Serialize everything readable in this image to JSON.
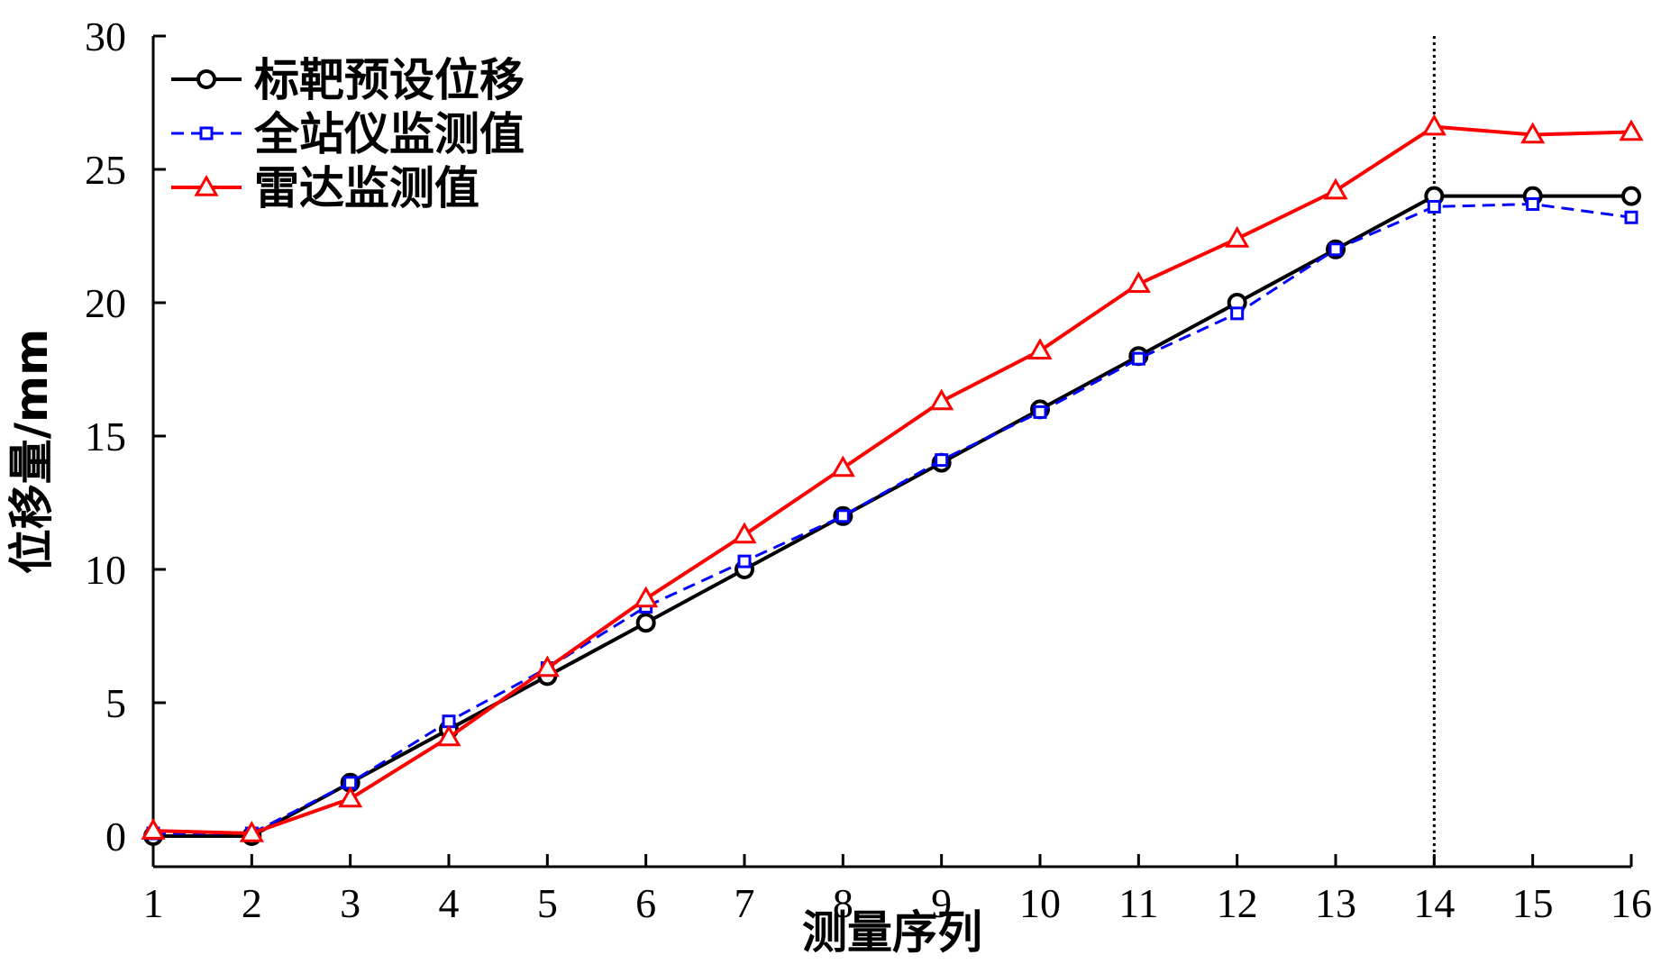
{
  "chart_data": {
    "type": "line",
    "title": "",
    "xlabel": "测量序列",
    "ylabel": "位移量/mm",
    "x": [
      1,
      2,
      3,
      4,
      5,
      6,
      7,
      8,
      9,
      10,
      11,
      12,
      13,
      14,
      15,
      16
    ],
    "xlim": [
      1,
      16
    ],
    "ylim": [
      0,
      30
    ],
    "yticks": [
      0,
      5,
      10,
      15,
      20,
      25,
      30
    ],
    "xticks": [
      1,
      2,
      3,
      4,
      5,
      6,
      7,
      8,
      9,
      10,
      11,
      12,
      13,
      14,
      15,
      16
    ],
    "grid": false,
    "legend_position": "top-left",
    "reference_line": {
      "x": 14,
      "style": "dotted"
    },
    "series": [
      {
        "name": "标靶预设位移",
        "color": "#000000",
        "marker": "circle",
        "line_style": "solid",
        "values": [
          0,
          0,
          2,
          4,
          6,
          8,
          10,
          12,
          14,
          16,
          18,
          20,
          22,
          24,
          24,
          24
        ]
      },
      {
        "name": "全站仪监测值",
        "color": "#0000ff",
        "marker": "square",
        "line_style": "dashed",
        "values": [
          0.1,
          0.1,
          2.0,
          4.3,
          6.3,
          8.6,
          10.3,
          12.0,
          14.1,
          15.9,
          17.9,
          19.6,
          22.0,
          23.6,
          23.7,
          23.2
        ]
      },
      {
        "name": "雷达监测值",
        "color": "#ff0000",
        "marker": "triangle",
        "line_style": "solid",
        "values": [
          0.2,
          0.1,
          1.4,
          3.7,
          6.3,
          8.9,
          11.3,
          13.8,
          16.3,
          18.2,
          20.7,
          22.4,
          24.2,
          26.6,
          26.3,
          26.4
        ]
      }
    ]
  }
}
